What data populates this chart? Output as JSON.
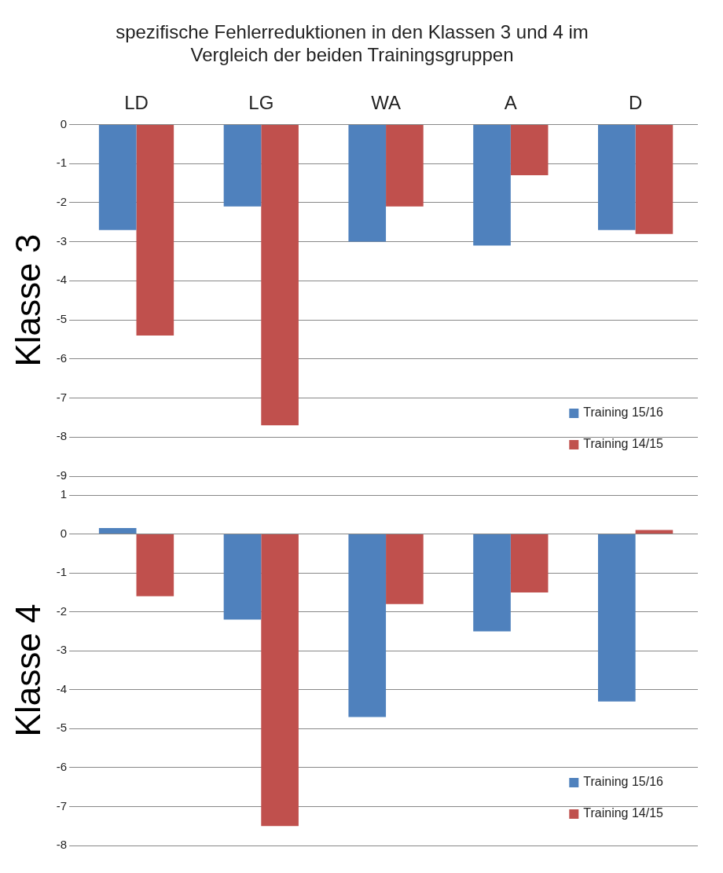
{
  "chart_data": [
    {
      "type": "bar",
      "title": "spezifische Fehlerreduktionen in den Klassen 3 und 4 im Vergleich der beiden Trainingsgruppen",
      "ylabel": "Klasse 3",
      "categories": [
        "LD",
        "LG",
        "WA",
        "A",
        "D"
      ],
      "ylim": [
        -9,
        0
      ],
      "yticks": [
        0,
        -1,
        -2,
        -3,
        -4,
        -5,
        -6,
        -7,
        -8,
        -9
      ],
      "grid": "y",
      "legend": "bottom right",
      "series": [
        {
          "name": "Training 15/16",
          "color": "#4f81bd",
          "values": [
            -2.7,
            -2.1,
            -3.0,
            -3.1,
            -2.7
          ]
        },
        {
          "name": "Training 14/15",
          "color": "#c0504d",
          "values": [
            -5.4,
            -7.7,
            -2.1,
            -1.3,
            -2.8
          ]
        }
      ]
    },
    {
      "type": "bar",
      "ylabel": "Klasse 4",
      "categories": [
        null,
        null,
        null,
        null,
        null
      ],
      "tick_labels": "y",
      "ylim": [
        -8,
        1
      ],
      "yticks": [
        1,
        0,
        -1,
        -2,
        -3,
        -4,
        -5,
        -6,
        -7,
        -8
      ],
      "grid": "y",
      "legend": "bottom right",
      "series": [
        {
          "name": "Training 15/16",
          "color": "#4f81bd",
          "values": [
            0.15,
            -2.2,
            -4.7,
            -2.5,
            -4.3
          ]
        },
        {
          "name": "Training 14/15",
          "color": "#c0504d",
          "values": [
            -1.6,
            -7.5,
            -1.8,
            -1.5,
            0.1
          ]
        }
      ]
    }
  ]
}
